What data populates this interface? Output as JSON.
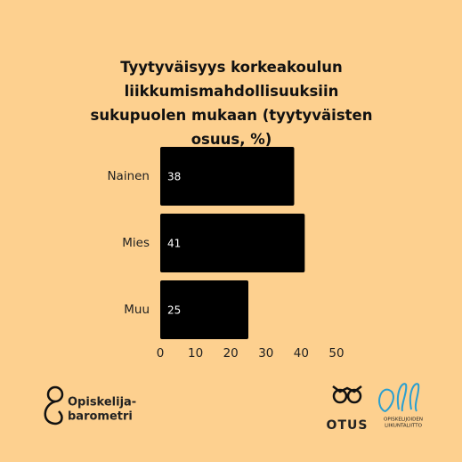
{
  "chart_data": {
    "type": "bar",
    "orientation": "horizontal",
    "title": "Tyytyväisyys korkeakoulun liikkumismahdollisuuksiin sukupuolen mukaan (tyytyväisten osuus, %)",
    "categories": [
      "Nainen",
      "Mies",
      "Muu"
    ],
    "values": [
      38,
      41,
      25
    ],
    "color": "#000000",
    "xlim": [
      0,
      50
    ],
    "xticks": [
      0,
      10,
      20,
      30,
      40,
      50
    ],
    "grid": false
  },
  "logos": {
    "left": [
      "Opiskelija-",
      "barometri"
    ],
    "middle": "OTUS",
    "right": [
      "OPISKELIJOIDEN",
      "LIIKUNTALIITTO"
    ]
  }
}
